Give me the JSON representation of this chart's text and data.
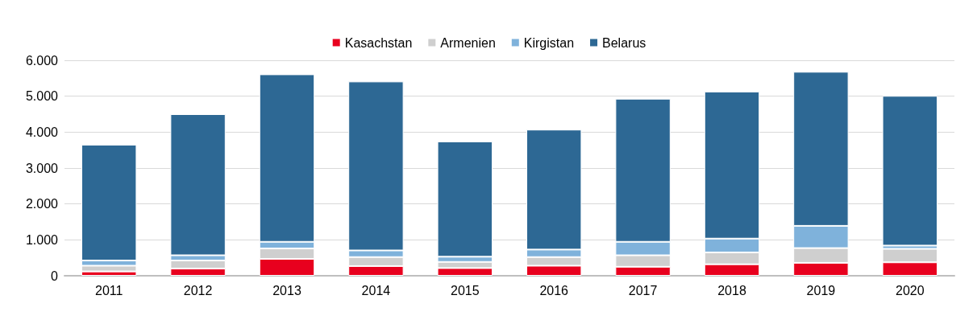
{
  "chart_data": {
    "type": "bar",
    "stacked": true,
    "categories": [
      "2011",
      "2012",
      "2013",
      "2014",
      "2015",
      "2016",
      "2017",
      "2018",
      "2019",
      "2020"
    ],
    "series": [
      {
        "name": "Kasachstan",
        "color": "#e8001e",
        "values": [
          120,
          200,
          470,
          270,
          215,
          280,
          250,
          320,
          360,
          375
        ]
      },
      {
        "name": "Armenien",
        "color": "#cfcfcf",
        "values": [
          160,
          225,
          290,
          250,
          170,
          240,
          320,
          330,
          410,
          375
        ]
      },
      {
        "name": "Kirgistan",
        "color": "#7fb2db",
        "values": [
          145,
          145,
          185,
          185,
          145,
          210,
          375,
          385,
          620,
          90
        ]
      },
      {
        "name": "Belarus",
        "color": "#2d6894",
        "values": [
          3225,
          3930,
          4665,
          4705,
          3210,
          3340,
          3985,
          4095,
          4290,
          4170
        ]
      }
    ],
    "ylim": [
      0,
      6000
    ],
    "yticks": [
      0,
      {
        "value": 1000,
        "label": "1.000"
      },
      {
        "value": 2000,
        "label": "2.000"
      },
      {
        "value": 3000,
        "label": "3.000"
      },
      {
        "value": 4000,
        "label": "4.000"
      },
      {
        "value": 5000,
        "label": "5.000"
      },
      {
        "value": 6000,
        "label": "6.000"
      }
    ],
    "grid": "y",
    "legend": "top"
  }
}
